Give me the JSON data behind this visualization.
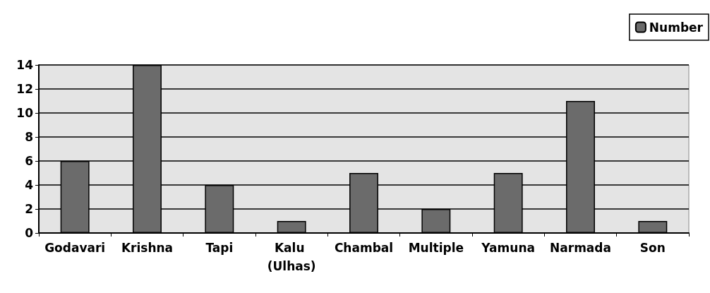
{
  "chart_data": {
    "type": "bar",
    "categories": [
      "Godavari",
      "Krishna",
      "Tapi",
      "Kalu (Ulhas)",
      "Chambal",
      "Multiple",
      "Yamuna",
      "Narmada",
      "Son"
    ],
    "series": [
      {
        "name": "Number",
        "color": "#6b6b6b",
        "values": [
          6,
          14,
          4,
          1,
          5,
          2,
          5,
          11,
          1
        ]
      }
    ],
    "ylim": [
      0,
      14
    ],
    "yticks": [
      0,
      2,
      4,
      6,
      8,
      10,
      12,
      14
    ],
    "grid": true,
    "legend": "top right"
  }
}
